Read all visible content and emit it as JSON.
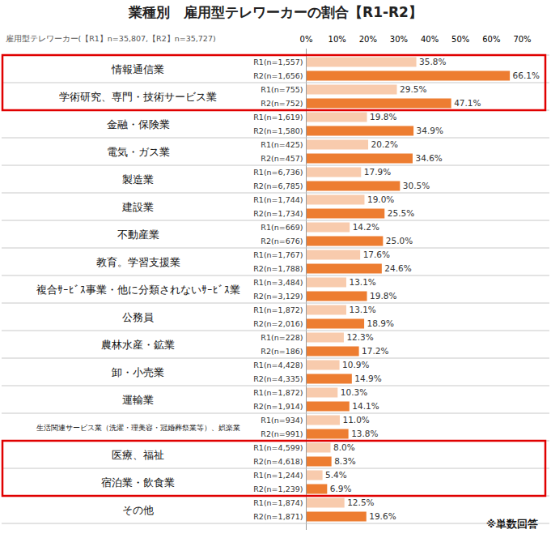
{
  "chart_data": {
    "type": "bar",
    "title": "業種別　雇用型テレワーカーの割合【R1-R2】",
    "subtitle": "雇用型テレワーカー(【R1】n=35,807,【R2】n=35,727)",
    "annotations": [
      "※単数回答"
    ],
    "orientation": "horizontal",
    "data_labels": true,
    "grid": false,
    "xlim": [
      0,
      70
    ],
    "xticks": [
      {
        "value": 0,
        "label": "0%"
      },
      {
        "value": 10,
        "label": "10%"
      },
      {
        "value": 20,
        "label": "20%"
      },
      {
        "value": 30,
        "label": "30%"
      },
      {
        "value": 40,
        "label": "40%"
      },
      {
        "value": 50,
        "label": "50%"
      },
      {
        "value": 60,
        "label": "60%"
      },
      {
        "value": 70,
        "label": "70%"
      }
    ],
    "categories": [
      "情報通信業",
      "学術研究、専門・技術サービス業",
      "金融・保険業",
      "電気・ガス業",
      "製造業",
      "建設業",
      "不動産業",
      "教育。学習支援業",
      "複合ｻｰﾋﾞｽ事業・他に分類されないｻｰﾋﾞｽ業",
      "公務員",
      "農林水産・鉱業",
      "卸・小売業",
      "運輸業",
      "生活関連サービス業（洗濯・理美容・冠婚葬祭業等）、娯楽業",
      "医療、福祉",
      "宿泊業・飲食業",
      "その他"
    ],
    "series": [
      {
        "name": "R1",
        "color": "#f8cbad",
        "values": [
          35.8,
          29.5,
          19.8,
          20.2,
          17.9,
          19.0,
          14.2,
          17.6,
          13.1,
          13.1,
          12.3,
          10.9,
          10.3,
          11.0,
          8.0,
          5.4,
          12.5
        ],
        "value_labels": [
          "35.8%",
          "29.5%",
          "19.8%",
          "20.2%",
          "17.9%",
          "19.0%",
          "14.2%",
          "17.6%",
          "13.1%",
          "13.1%",
          "12.3%",
          "10.9%",
          "10.3%",
          "11.0%",
          "8.0%",
          "5.4%",
          "12.5%"
        ],
        "bar_labels": [
          "R1(n=1,557)",
          "R1(n=755)",
          "R1(n=1,619)",
          "R1(n=425)",
          "R1(n=6,736)",
          "R1(n=1,744)",
          "R1(n=669)",
          "R1(n=1,767)",
          "R1(n=3,484)",
          "R1(n=1,872)",
          "R1(n=228)",
          "R1(n=4,428)",
          "R1(n=1,872)",
          "R1(n=934)",
          "R1(n=4,599)",
          "R1(n=1,244)",
          "R1(n=1,874)"
        ]
      },
      {
        "name": "R2",
        "color": "#ed7d31",
        "values": [
          66.1,
          47.1,
          34.9,
          34.6,
          30.5,
          25.5,
          25.0,
          24.6,
          19.8,
          18.9,
          17.2,
          14.9,
          14.1,
          13.8,
          8.3,
          6.9,
          19.6
        ],
        "value_labels": [
          "66.1%",
          "47.1%",
          "34.9%",
          "34.6%",
          "30.5%",
          "25.5%",
          "25.0%",
          "24.6%",
          "19.8%",
          "18.9%",
          "17.2%",
          "14.9%",
          "14.1%",
          "13.8%",
          "8.3%",
          "6.9%",
          "19.6%"
        ],
        "bar_labels": [
          "R2(n=1,656)",
          "R2(n=752)",
          "R2(n=1,580)",
          "R2(n=457)",
          "R2(n=6,785)",
          "R2(n=1,734)",
          "R2(n=676)",
          "R2(n=1,788)",
          "R2(n=3,129)",
          "R2(n=2,016)",
          "R2(n=186)",
          "R2(n=4,335)",
          "R2(n=1,914)",
          "R2(n=991)",
          "R2(n=4,618)",
          "R2(n=1,239)",
          "R2(n=1,871)"
        ]
      }
    ],
    "highlight_boxes": [
      {
        "categories": [
          "情報通信業",
          "学術研究、専門・技術サービス業"
        ],
        "color": "#e00000"
      },
      {
        "categories": [
          "医療、福祉",
          "宿泊業・飲食業"
        ],
        "color": "#e00000"
      }
    ]
  }
}
